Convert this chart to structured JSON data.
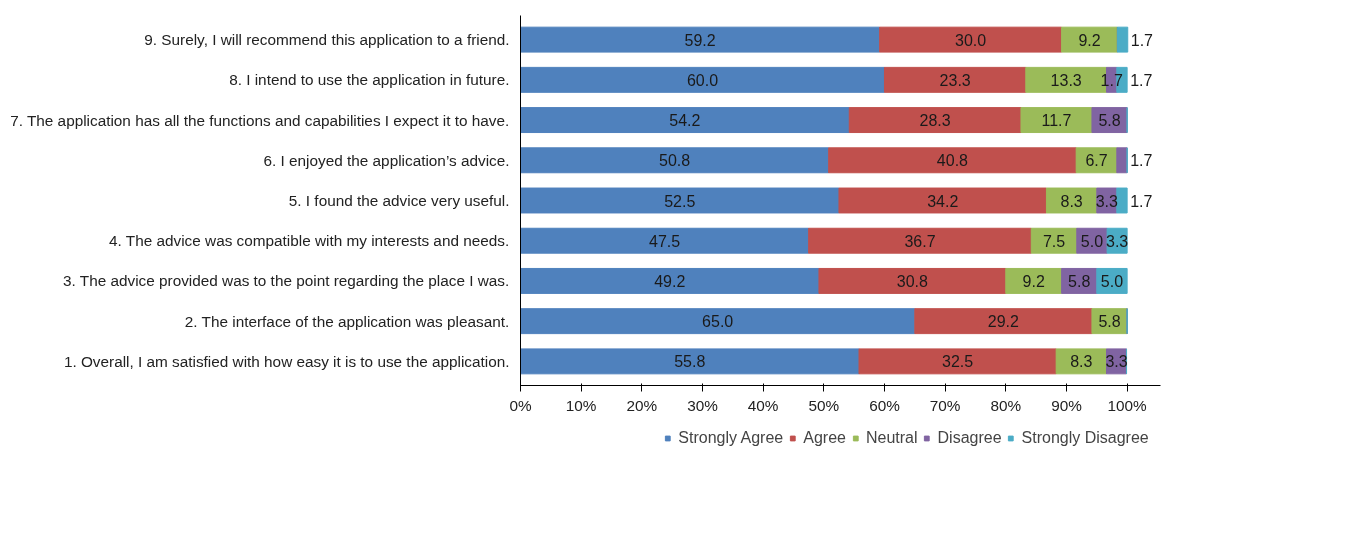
{
  "chart_data": {
    "type": "bar",
    "orientation": "horizontal",
    "stacked": true,
    "categories": [
      "9. Surely, I will recommend this application to a friend.",
      "8. I intend to use the application in future.",
      "7. The application has all the functions and capabilities I expect it to have.",
      "6. I enjoyed the application’s advice.",
      "5. I found the advice very useful.",
      "4. The advice was compatible with my interests and needs.",
      "3. The advice provided was to the point regarding the place I was.",
      "2. The interface of the application was pleasant.",
      "1. Overall, I am satisfied with how easy it is to use the application."
    ],
    "series": [
      {
        "name": "Strongly Agree",
        "color": "#4f81bd",
        "values": [
          59.2,
          60.0,
          54.2,
          50.8,
          52.5,
          47.5,
          49.2,
          65.0,
          55.8
        ],
        "value_labels": [
          "59.2",
          "60.0",
          "54.2",
          "50.8",
          "52.5",
          "47.5",
          "49.2",
          "65.0",
          "55.8"
        ]
      },
      {
        "name": "Agree",
        "color": "#c0504d",
        "values": [
          30.0,
          23.3,
          28.3,
          40.8,
          34.2,
          36.7,
          30.8,
          29.2,
          32.5
        ],
        "value_labels": [
          "30.0",
          "23.3",
          "28.3",
          "40.8",
          "34.2",
          "36.7",
          "30.8",
          "29.2",
          "32.5"
        ]
      },
      {
        "name": "Neutral",
        "color": "#9bbb59",
        "values": [
          9.2,
          13.3,
          11.7,
          6.7,
          8.3,
          7.5,
          9.2,
          5.8,
          8.3
        ],
        "value_labels": [
          "9.2",
          "13.3",
          "11.7",
          "6.7",
          "8.3",
          "7.5",
          "9.2",
          "5.8",
          "8.3"
        ]
      },
      {
        "name": "Disagree",
        "color": "#8064a2",
        "values": [
          0,
          1.7,
          5.8,
          1.7,
          3.3,
          5.0,
          5.8,
          0,
          3.3
        ],
        "value_labels": [
          null,
          "1.7",
          "5.8",
          "1.7",
          "3.3",
          "5.0",
          "5.8",
          null,
          "3.3"
        ]
      },
      {
        "name": "Strongly Disagree",
        "color": "#4bacc6",
        "values": [
          1.7,
          1.7,
          0,
          0,
          1.7,
          3.3,
          5.0,
          0,
          0
        ],
        "value_labels": [
          "1.7",
          "1.7",
          null,
          null,
          "1.7",
          "3.3",
          "5.0",
          null,
          null
        ]
      }
    ],
    "xlim": [
      0,
      100
    ],
    "xticks": [
      {
        "value": 0,
        "label": "0%"
      },
      {
        "value": 10,
        "label": "10%"
      },
      {
        "value": 20,
        "label": "20%"
      },
      {
        "value": 30,
        "label": "30%"
      },
      {
        "value": 40,
        "label": "40%"
      },
      {
        "value": 50,
        "label": "50%"
      },
      {
        "value": 60,
        "label": "60%"
      },
      {
        "value": 70,
        "label": "70%"
      },
      {
        "value": 80,
        "label": "80%"
      },
      {
        "value": 90,
        "label": "90%"
      },
      {
        "value": 100,
        "label": "100%"
      }
    ],
    "grid": false,
    "legend": "bottom"
  }
}
